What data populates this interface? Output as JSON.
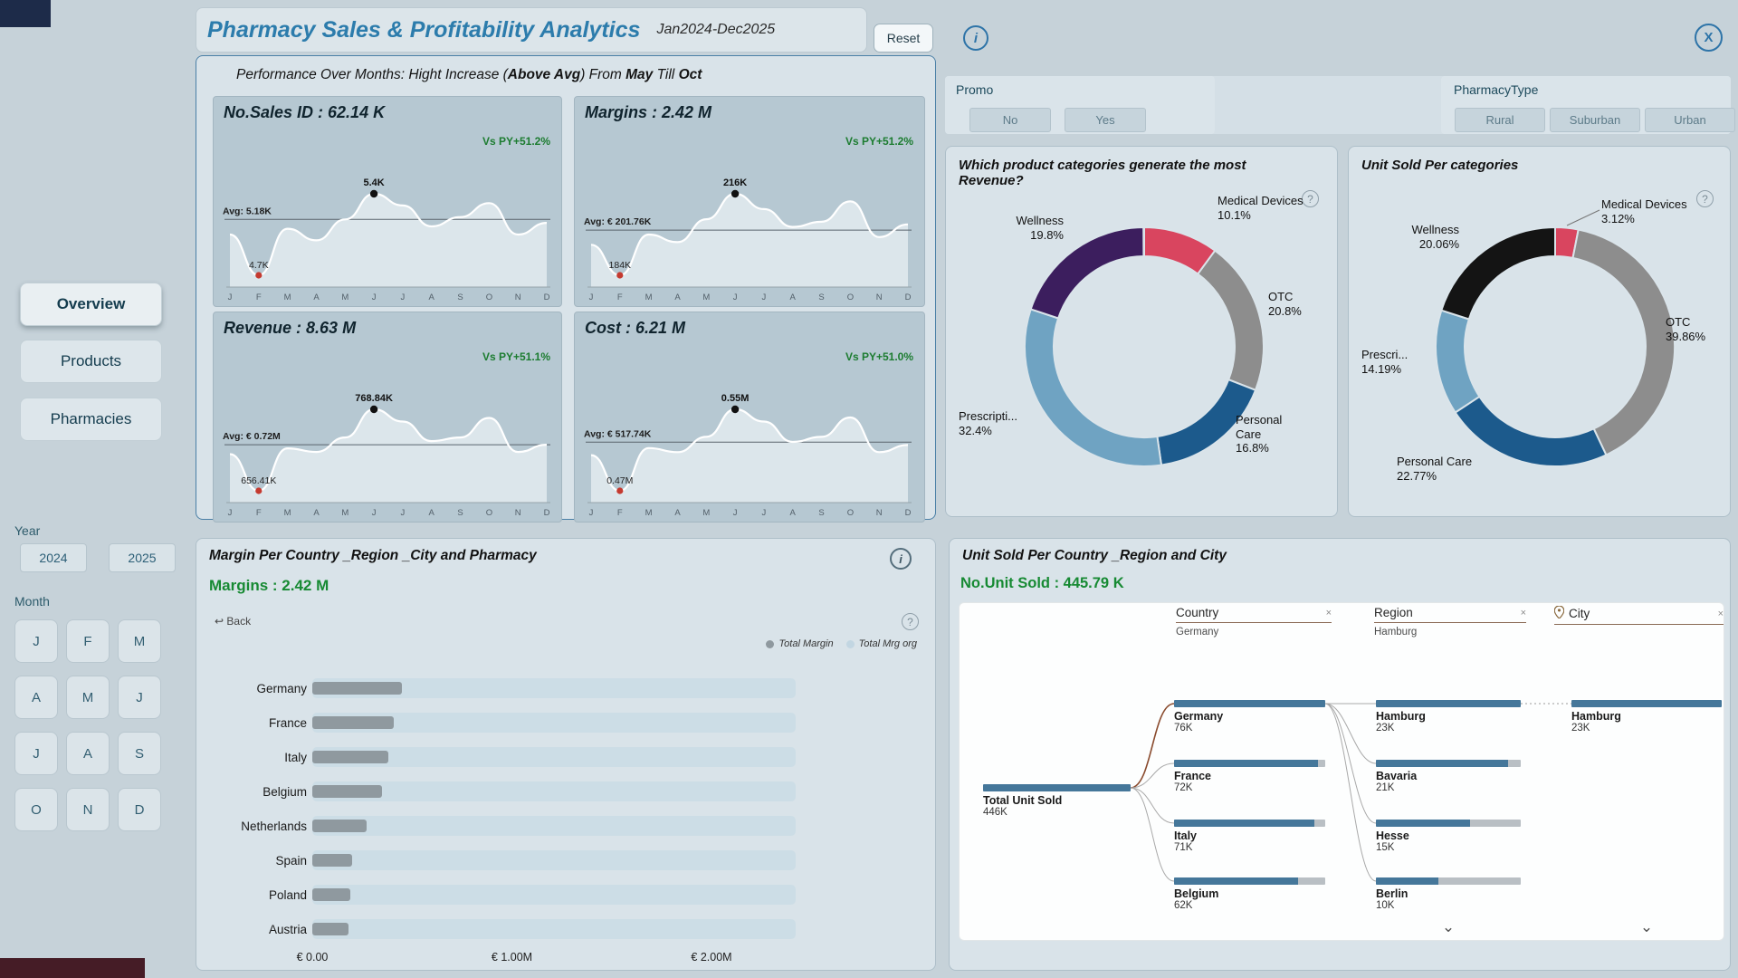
{
  "icons": {
    "info": "i",
    "close": "X",
    "help": "?",
    "back_arrow": "↩",
    "clear": "×",
    "chevron_down": "⌄"
  },
  "header": {
    "title": "Pharmacy Sales & Profitability Analytics",
    "subtitle": "Jan2024-Dec2025",
    "reset_label": "Reset"
  },
  "sidebar": {
    "nav": [
      {
        "label": "Overview",
        "active": true
      },
      {
        "label": "Products",
        "active": false
      },
      {
        "label": "Pharmacies",
        "active": false
      }
    ],
    "year": {
      "label": "Year",
      "options": [
        "2024",
        "2025"
      ]
    },
    "month": {
      "label": "Month",
      "options": [
        "J",
        "F",
        "M",
        "A",
        "M",
        "J",
        "J",
        "A",
        "S",
        "O",
        "N",
        "D"
      ]
    }
  },
  "filters": {
    "promo": {
      "label": "Promo",
      "options": [
        "No",
        "Yes"
      ]
    },
    "pharmacy_type": {
      "label": "PharmacyType",
      "options": [
        "Rural",
        "Suburban",
        "Urban"
      ]
    }
  },
  "performance": {
    "heading": [
      {
        "text": "Performance Over Months: Hight Increase (",
        "bold": false
      },
      {
        "text": "Above Avg",
        "bold": true
      },
      {
        "text": ") From ",
        "bold": false
      },
      {
        "text": "May",
        "bold": true
      },
      {
        "text": " Till ",
        "bold": false
      },
      {
        "text": "Oct",
        "bold": true
      }
    ]
  },
  "margin_panel": {
    "title": "Margin Per Country _Region _City and Pharmacy",
    "metric": "Margins : 2.42 M",
    "back_label": "Back",
    "legend": [
      {
        "label": "Total Margin",
        "color": "#8f999f"
      },
      {
        "label": "Total Mrg org",
        "color": "#c2d6e2"
      }
    ]
  },
  "unit_panel": {
    "title": "Unit Sold Per Country _Region and City",
    "metric": "No.Unit Sold : 445.79 K",
    "fields": [
      {
        "label": "Country",
        "value": "Germany",
        "has_pin": false
      },
      {
        "label": "Region",
        "value": "Hamburg",
        "has_pin": false
      },
      {
        "label": "City",
        "value": "",
        "has_pin": true
      }
    ]
  },
  "chart_data": [
    {
      "id": "kpi-sales",
      "type": "area",
      "title": "No.Sales ID : 62.14 K",
      "vs_py": "Vs PY+51.2%",
      "avg_label": "Avg: 5.18K",
      "avg": 5.18,
      "max_label": "5.4K",
      "min_label": "4.7K",
      "x": [
        "J",
        "F",
        "M",
        "A",
        "M",
        "J",
        "J",
        "A",
        "S",
        "O",
        "N",
        "D"
      ],
      "values": [
        5.05,
        4.7,
        5.1,
        5.0,
        5.18,
        5.4,
        5.3,
        5.12,
        5.2,
        5.32,
        5.05,
        5.15
      ]
    },
    {
      "id": "kpi-margins",
      "type": "area",
      "title": "Margins : 2.42 M",
      "vs_py": "Vs PY+51.2%",
      "avg_label": "Avg: € 201.76K",
      "avg": 201.76,
      "max_label": "216K",
      "min_label": "184K",
      "x": [
        "J",
        "F",
        "M",
        "A",
        "M",
        "J",
        "J",
        "A",
        "S",
        "O",
        "N",
        "D"
      ],
      "values": [
        196,
        184,
        200,
        197,
        206,
        216,
        210,
        203,
        205,
        213,
        199,
        204
      ]
    },
    {
      "id": "kpi-revenue",
      "type": "area",
      "title": "Revenue : 8.63 M",
      "vs_py": "Vs PY+51.1%",
      "avg_label": "Avg: € 0.72M",
      "avg": 720,
      "max_label": "768.84K",
      "min_label": "656.41K",
      "x": [
        "J",
        "F",
        "M",
        "A",
        "M",
        "J",
        "J",
        "A",
        "S",
        "O",
        "N",
        "D"
      ],
      "values": [
        707,
        656.41,
        715,
        710,
        730,
        768.84,
        752,
        725,
        730,
        757,
        710,
        720
      ]
    },
    {
      "id": "kpi-cost",
      "type": "area",
      "title": "Cost : 6.21 M",
      "vs_py": "Vs PY+51.0%",
      "avg_label": "Avg: € 517.74K",
      "avg": 517.74,
      "max_label": "0.55M",
      "min_label": "0.47M",
      "x": [
        "J",
        "F",
        "M",
        "A",
        "M",
        "J",
        "J",
        "A",
        "S",
        "O",
        "N",
        "D"
      ],
      "values": [
        505,
        470,
        512,
        508,
        523,
        550,
        538,
        518,
        523,
        542,
        508,
        515
      ]
    },
    {
      "id": "donut-revenue",
      "type": "pie",
      "title": "Which product categories generate the most Revenue?",
      "slices": [
        {
          "label": "Medical Devices",
          "pct": 10.1,
          "color": "#d9455f"
        },
        {
          "label": "OTC",
          "pct": 20.8,
          "color": "#8d8d8d"
        },
        {
          "label": "Personal Care",
          "pct": 16.8,
          "color": "#1c5a8c"
        },
        {
          "label": "Prescripti...",
          "pct": 32.4,
          "color": "#6fa3c2"
        },
        {
          "label": "Wellness",
          "pct": 19.8,
          "color": "#3c1e5e"
        }
      ]
    },
    {
      "id": "donut-units",
      "type": "pie",
      "title": "Unit Sold Per categories",
      "slices": [
        {
          "label": "Medical Devices",
          "pct": 3.12,
          "color": "#d9455f"
        },
        {
          "label": "OTC",
          "pct": 39.86,
          "color": "#8d8d8d"
        },
        {
          "label": "Personal Care",
          "pct": 22.77,
          "color": "#1c5a8c"
        },
        {
          "label": "Prescri...",
          "pct": 14.19,
          "color": "#6fa3c2"
        },
        {
          "label": "Wellness",
          "pct": 20.06,
          "color": "#141414"
        }
      ]
    },
    {
      "id": "margin-by-country",
      "type": "bar",
      "title": "Margin Per Country _Region _City and Pharmacy",
      "categories": [
        "Germany",
        "France",
        "Italy",
        "Belgium",
        "Netherlands",
        "Spain",
        "Poland",
        "Austria"
      ],
      "series": [
        {
          "name": "Total Margin",
          "color": "#8f999f",
          "values": [
            0.45,
            0.41,
            0.38,
            0.35,
            0.27,
            0.2,
            0.19,
            0.18
          ]
        },
        {
          "name": "Total Mrg org",
          "color": "#ccdde6",
          "values": [
            2.42,
            2.42,
            2.42,
            2.42,
            2.42,
            2.42,
            2.42,
            2.42
          ]
        }
      ],
      "x_ticks": [
        "€ 0.00",
        "€ 1.00M",
        "€ 2.00M"
      ],
      "xlim": [
        0,
        2.47
      ],
      "unit": "M EUR"
    },
    {
      "id": "unit-tree",
      "type": "table",
      "title": "Unit Sold Per Country _Region and City",
      "root": {
        "label": "Total Unit Sold",
        "value": 446,
        "value_label": "446K"
      },
      "levels": [
        {
          "name": "Country",
          "nodes": [
            {
              "label": "Germany",
              "value": 76,
              "value_label": "76K",
              "selected": true
            },
            {
              "label": "France",
              "value": 72,
              "value_label": "72K",
              "selected": false
            },
            {
              "label": "Italy",
              "value": 71,
              "value_label": "71K",
              "selected": false
            },
            {
              "label": "Belgium",
              "value": 62,
              "value_label": "62K",
              "selected": false
            }
          ]
        },
        {
          "name": "Region",
          "nodes": [
            {
              "label": "Hamburg",
              "value": 23,
              "value_label": "23K",
              "selected": true
            },
            {
              "label": "Bavaria",
              "value": 21,
              "value_label": "21K",
              "selected": false
            },
            {
              "label": "Hesse",
              "value": 15,
              "value_label": "15K",
              "selected": false
            },
            {
              "label": "Berlin",
              "value": 10,
              "value_label": "10K",
              "selected": false
            }
          ]
        },
        {
          "name": "City",
          "nodes": [
            {
              "label": "Hamburg",
              "value": 23,
              "value_label": "23K",
              "selected": true
            }
          ]
        }
      ]
    }
  ]
}
